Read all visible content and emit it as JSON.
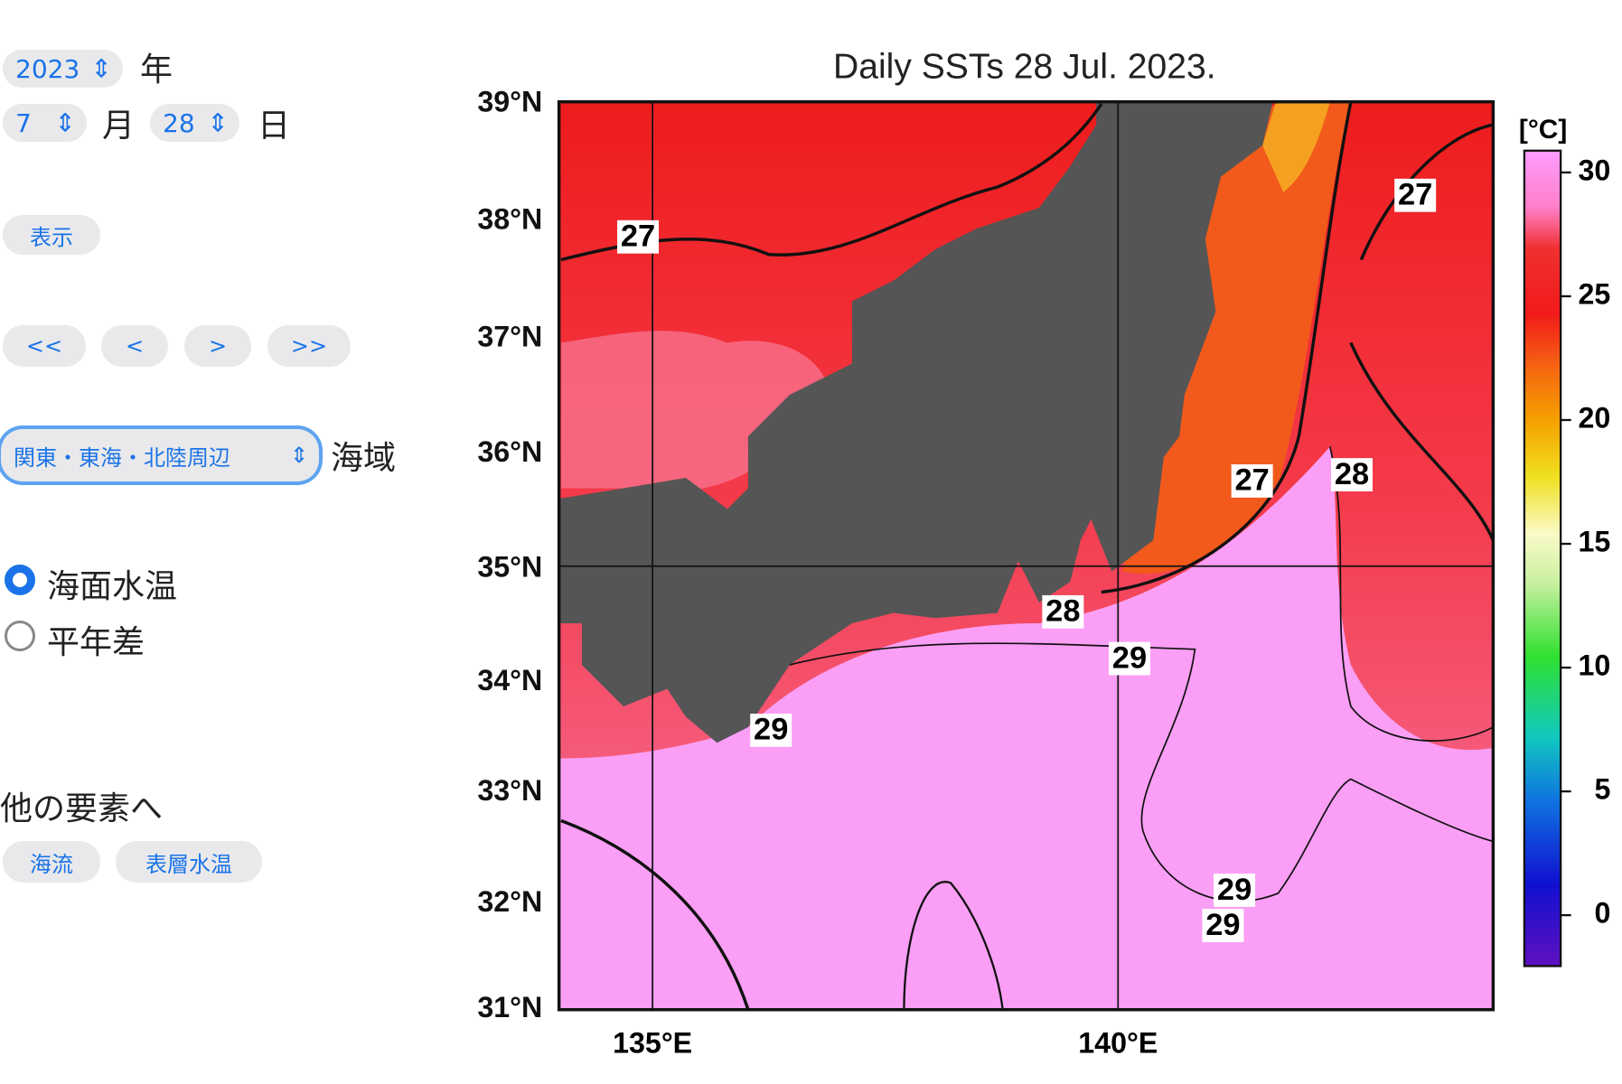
{
  "controls": {
    "year": "2023",
    "year_unit": "年",
    "month": "7",
    "month_unit": "月",
    "day": "28",
    "day_unit": "日",
    "show_button": "表示",
    "nav": [
      "<<",
      "<",
      ">",
      ">>"
    ],
    "region": "関東・東海・北陸周辺",
    "region_unit": "海域",
    "modes": [
      "海面水温",
      "平年差"
    ],
    "other_heading": "他の要素へ",
    "other_links": [
      "海流",
      "表層水温"
    ]
  },
  "map": {
    "title": "Daily SSTs 28 Jul. 2023.",
    "lat_labels": [
      "39°N",
      "38°N",
      "37°N",
      "36°N",
      "35°N",
      "34°N",
      "33°N",
      "32°N",
      "31°N"
    ],
    "lon_labels": [
      "135°E",
      "140°E"
    ],
    "colorbar": {
      "unit": "[°C]",
      "ticks": [
        0,
        5,
        10,
        15,
        20,
        25,
        30
      ]
    },
    "contour_labels": [
      "27",
      "27",
      "27",
      "28",
      "28",
      "29",
      "29",
      "29",
      "29"
    ]
  }
}
